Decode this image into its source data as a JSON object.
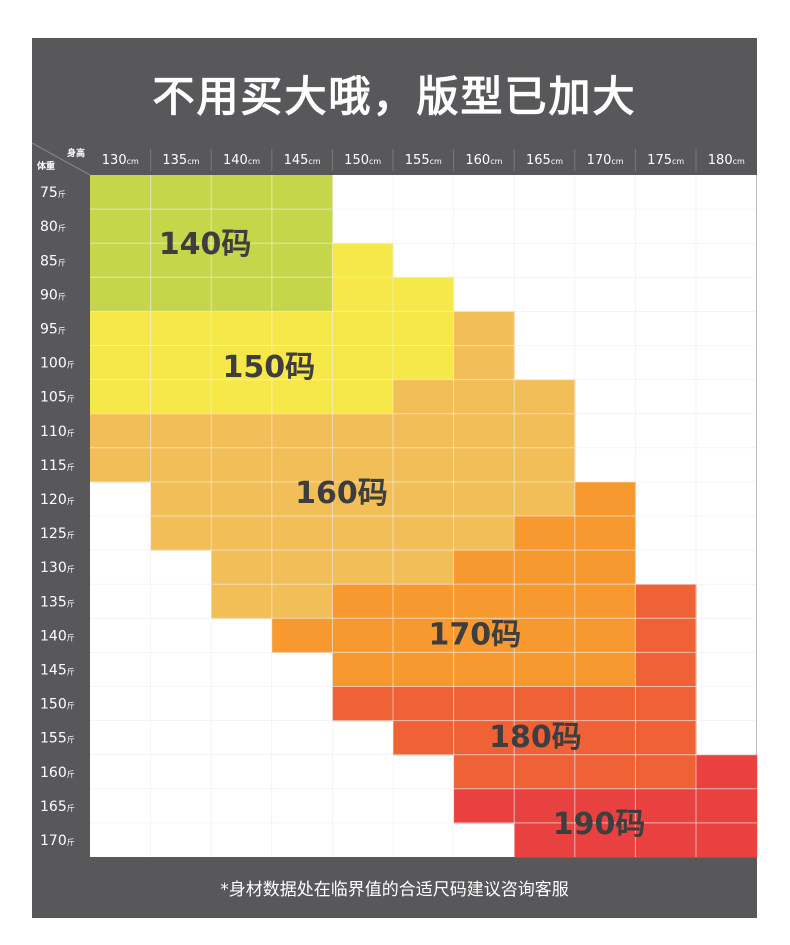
{
  "title": "不用买大哦，版型已加大",
  "corner_labels": {
    "height": "身高",
    "weight": "体重"
  },
  "footer": "*身材数据处在临界值的合适尺码建议咨询客服",
  "colors": {
    "frame": "#58575a",
    "size_140": "#c5d64a",
    "size_150": "#f7e84a",
    "size_160": "#f2be58",
    "size_170": "#f7992f",
    "size_180": "#ee6236",
    "size_190": "#e94040",
    "label_text": "#3f3e3e"
  },
  "chart_data": {
    "type": "heatmap",
    "title": "不用买大哦，版型已加大",
    "x_unit": "cm",
    "y_unit": "斤",
    "x_values": [
      130,
      135,
      140,
      145,
      150,
      155,
      160,
      165,
      170,
      175,
      180
    ],
    "y_values": [
      75,
      80,
      85,
      90,
      95,
      100,
      105,
      110,
      115,
      120,
      125,
      130,
      135,
      140,
      145,
      150,
      155,
      160,
      165,
      170
    ],
    "size_labels": [
      "140码",
      "150码",
      "160码",
      "170码",
      "180码",
      "190码"
    ],
    "grid": [
      [
        1,
        1,
        1,
        1,
        0,
        0,
        0,
        0,
        0,
        0,
        0
      ],
      [
        1,
        1,
        1,
        1,
        0,
        0,
        0,
        0,
        0,
        0,
        0
      ],
      [
        1,
        1,
        1,
        1,
        2,
        0,
        0,
        0,
        0,
        0,
        0
      ],
      [
        1,
        1,
        1,
        1,
        2,
        2,
        0,
        0,
        0,
        0,
        0
      ],
      [
        2,
        2,
        2,
        2,
        2,
        2,
        3,
        0,
        0,
        0,
        0
      ],
      [
        2,
        2,
        2,
        2,
        2,
        2,
        3,
        0,
        0,
        0,
        0
      ],
      [
        2,
        2,
        2,
        2,
        2,
        3,
        3,
        3,
        0,
        0,
        0
      ],
      [
        3,
        3,
        3,
        3,
        3,
        3,
        3,
        3,
        0,
        0,
        0
      ],
      [
        3,
        3,
        3,
        3,
        3,
        3,
        3,
        3,
        0,
        0,
        0
      ],
      [
        0,
        3,
        3,
        3,
        3,
        3,
        3,
        3,
        4,
        0,
        0
      ],
      [
        0,
        3,
        3,
        3,
        3,
        3,
        3,
        4,
        4,
        0,
        0
      ],
      [
        0,
        0,
        3,
        3,
        3,
        3,
        4,
        4,
        4,
        0,
        0
      ],
      [
        0,
        0,
        3,
        3,
        4,
        4,
        4,
        4,
        4,
        5,
        0
      ],
      [
        0,
        0,
        0,
        4,
        4,
        4,
        4,
        4,
        4,
        5,
        0
      ],
      [
        0,
        0,
        0,
        0,
        4,
        4,
        4,
        4,
        4,
        5,
        0
      ],
      [
        0,
        0,
        0,
        0,
        5,
        5,
        5,
        5,
        5,
        5,
        0
      ],
      [
        0,
        0,
        0,
        0,
        0,
        5,
        5,
        5,
        5,
        5,
        0
      ],
      [
        0,
        0,
        0,
        0,
        0,
        0,
        5,
        5,
        5,
        5,
        6
      ],
      [
        0,
        0,
        0,
        0,
        0,
        0,
        6,
        6,
        6,
        6,
        6
      ],
      [
        0,
        0,
        0,
        0,
        0,
        0,
        0,
        6,
        6,
        6,
        6
      ]
    ],
    "grid_lines": true
  }
}
